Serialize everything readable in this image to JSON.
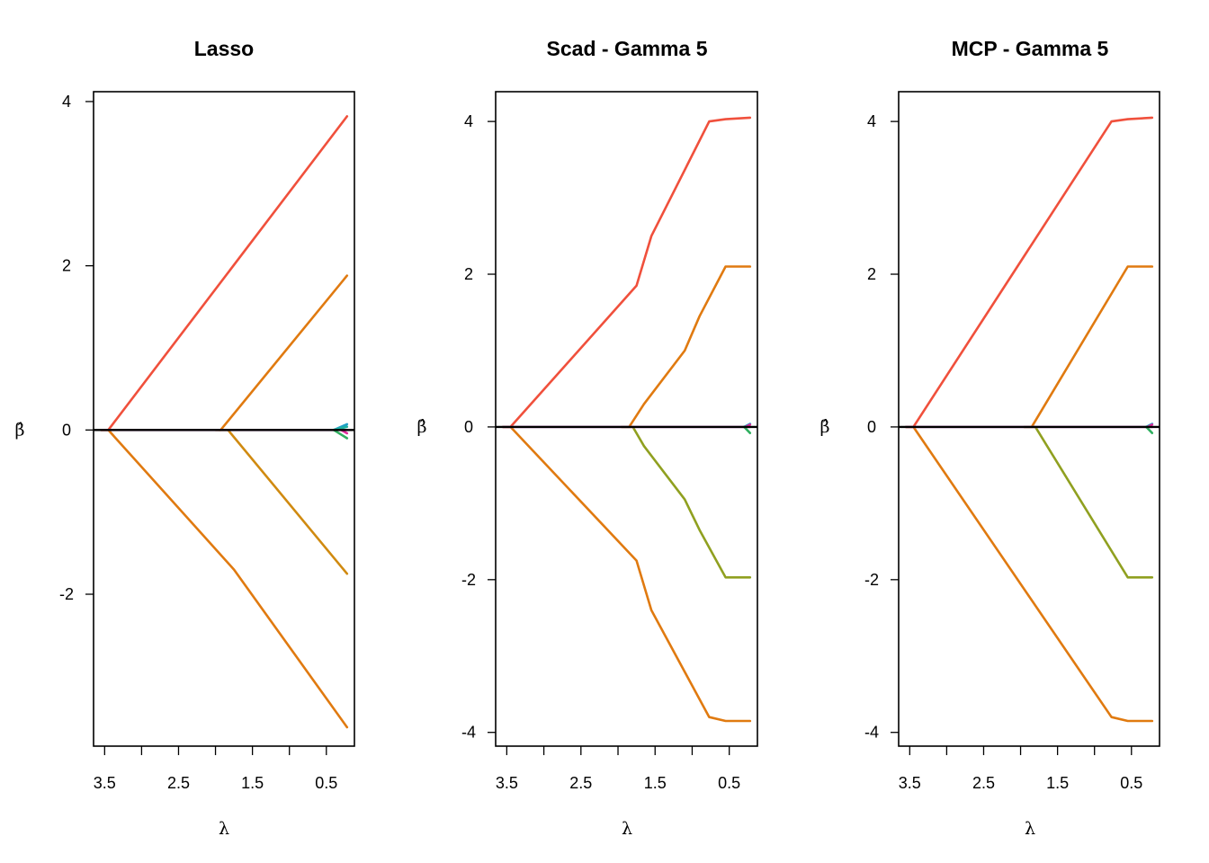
{
  "panels": [
    {
      "title": "Lasso",
      "xlabel": "λ",
      "ylabel": "β̂",
      "ylim": [
        -3.85,
        4.12
      ],
      "yticks": [
        -2,
        0,
        2,
        4
      ],
      "ytick_labels": [
        "-2",
        "0",
        "2",
        "4"
      ],
      "chart_data": {
        "type": "line",
        "title": "Lasso",
        "xlabel": "λ",
        "ylabel": "β̂",
        "xlim": [
          3.65,
          0.12
        ],
        "ylim": [
          -3.85,
          4.12
        ],
        "x_reversed": true,
        "xticks": [
          3.5,
          3.0,
          2.5,
          2.0,
          1.5,
          1.0,
          0.5
        ],
        "xtick_labels": [
          "3.5",
          "2.5",
          "1.5",
          "0.5"
        ],
        "zero_line": true,
        "series": [
          {
            "color": "#F0503C",
            "points": [
              [
                3.55,
                0
              ],
              [
                3.45,
                0
              ],
              [
                0.22,
                3.82
              ]
            ]
          },
          {
            "color": "#E07A10",
            "points": [
              [
                3.55,
                0
              ],
              [
                3.45,
                0
              ],
              [
                1.75,
                -1.7
              ],
              [
                0.22,
                -3.62
              ]
            ]
          },
          {
            "color": "#E07A10",
            "points": [
              [
                2.0,
                0
              ],
              [
                1.93,
                0
              ],
              [
                0.22,
                1.88
              ]
            ]
          },
          {
            "color": "#D08A10",
            "points": [
              [
                1.95,
                0
              ],
              [
                1.83,
                0
              ],
              [
                0.22,
                -1.75
              ]
            ]
          },
          {
            "color": "#D070D0",
            "points": [
              [
                3.55,
                0
              ],
              [
                0.22,
                0
              ]
            ]
          },
          {
            "color": "#1FA0C8",
            "points": [
              [
                0.4,
                0
              ],
              [
                0.22,
                0.07
              ]
            ]
          },
          {
            "color": "#30B060",
            "points": [
              [
                0.4,
                0
              ],
              [
                0.22,
                -0.1
              ]
            ]
          },
          {
            "color": "#20B0A0",
            "points": [
              [
                0.4,
                0
              ],
              [
                0.22,
                0.04
              ]
            ]
          },
          {
            "color": "#E02A9A",
            "points": [
              [
                0.3,
                0
              ],
              [
                0.22,
                -0.04
              ]
            ]
          }
        ]
      }
    },
    {
      "title": "Scad - Gamma 5",
      "xlabel": "λ",
      "ylabel": "β̂",
      "ylim": [
        -4.18,
        4.39
      ],
      "yticks": [
        -4,
        -2,
        0,
        2,
        4
      ],
      "ytick_labels": [
        "-4",
        "-2",
        "0",
        "2",
        "4"
      ],
      "chart_data": {
        "type": "line",
        "title": "Scad - Gamma 5",
        "xlabel": "λ",
        "ylabel": "β̂",
        "xlim": [
          3.65,
          0.12
        ],
        "ylim": [
          -4.18,
          4.39
        ],
        "x_reversed": true,
        "xticks": [
          3.5,
          3.0,
          2.5,
          2.0,
          1.5,
          1.0,
          0.5
        ],
        "xtick_labels": [
          "3.5",
          "2.5",
          "1.5",
          "0.5"
        ],
        "zero_line": true,
        "series": [
          {
            "color": "#F0503C",
            "points": [
              [
                3.55,
                0
              ],
              [
                3.45,
                0
              ],
              [
                1.75,
                1.85
              ],
              [
                1.55,
                2.5
              ],
              [
                0.77,
                4.0
              ],
              [
                0.55,
                4.03
              ],
              [
                0.22,
                4.05
              ]
            ]
          },
          {
            "color": "#E07A10",
            "points": [
              [
                3.55,
                0
              ],
              [
                3.45,
                0
              ],
              [
                1.75,
                -1.75
              ],
              [
                1.55,
                -2.4
              ],
              [
                0.77,
                -3.8
              ],
              [
                0.55,
                -3.85
              ],
              [
                0.22,
                -3.85
              ]
            ]
          },
          {
            "color": "#E07A10",
            "points": [
              [
                1.95,
                0
              ],
              [
                1.85,
                0
              ],
              [
                1.65,
                0.3
              ],
              [
                1.1,
                1.0
              ],
              [
                0.9,
                1.45
              ],
              [
                0.55,
                2.1
              ],
              [
                0.22,
                2.1
              ]
            ]
          },
          {
            "color": "#90A020",
            "points": [
              [
                1.95,
                0
              ],
              [
                1.8,
                0
              ],
              [
                1.65,
                -0.25
              ],
              [
                1.1,
                -0.95
              ],
              [
                0.9,
                -1.35
              ],
              [
                0.55,
                -1.97
              ],
              [
                0.22,
                -1.97
              ]
            ]
          },
          {
            "color": "#D070D0",
            "points": [
              [
                3.55,
                0
              ],
              [
                0.22,
                0
              ]
            ]
          },
          {
            "color": "#1FA0C8",
            "points": [
              [
                0.3,
                0
              ],
              [
                0.22,
                0.04
              ]
            ]
          },
          {
            "color": "#30B060",
            "points": [
              [
                0.3,
                0
              ],
              [
                0.22,
                -0.08
              ]
            ]
          },
          {
            "color": "#E02A9A",
            "points": [
              [
                0.28,
                0
              ],
              [
                0.22,
                0.03
              ]
            ]
          }
        ]
      }
    },
    {
      "title": "MCP - Gamma 5",
      "xlabel": "λ",
      "ylabel": "β̂",
      "ylim": [
        -4.18,
        4.39
      ],
      "yticks": [
        -4,
        -2,
        0,
        2,
        4
      ],
      "ytick_labels": [
        "-4",
        "-2",
        "0",
        "2",
        "4"
      ],
      "chart_data": {
        "type": "line",
        "title": "MCP - Gamma 5",
        "xlabel": "λ",
        "ylabel": "β̂",
        "xlim": [
          3.65,
          0.12
        ],
        "ylim": [
          -4.18,
          4.39
        ],
        "x_reversed": true,
        "xticks": [
          3.5,
          3.0,
          2.5,
          2.0,
          1.5,
          1.0,
          0.5
        ],
        "xtick_labels": [
          "3.5",
          "2.5",
          "1.5",
          "0.5"
        ],
        "zero_line": true,
        "series": [
          {
            "color": "#F0503C",
            "points": [
              [
                3.55,
                0
              ],
              [
                3.45,
                0
              ],
              [
                0.77,
                4.0
              ],
              [
                0.55,
                4.03
              ],
              [
                0.22,
                4.05
              ]
            ]
          },
          {
            "color": "#E07A10",
            "points": [
              [
                3.55,
                0
              ],
              [
                3.45,
                0
              ],
              [
                0.77,
                -3.8
              ],
              [
                0.55,
                -3.85
              ],
              [
                0.22,
                -3.85
              ]
            ]
          },
          {
            "color": "#E07A10",
            "points": [
              [
                1.95,
                0
              ],
              [
                1.85,
                0
              ],
              [
                0.55,
                2.1
              ],
              [
                0.22,
                2.1
              ]
            ]
          },
          {
            "color": "#90A020",
            "points": [
              [
                1.95,
                0
              ],
              [
                1.8,
                0
              ],
              [
                0.55,
                -1.97
              ],
              [
                0.22,
                -1.97
              ]
            ]
          },
          {
            "color": "#D070D0",
            "points": [
              [
                3.55,
                0
              ],
              [
                0.22,
                0
              ]
            ]
          },
          {
            "color": "#1FA0C8",
            "points": [
              [
                0.3,
                0
              ],
              [
                0.22,
                0.04
              ]
            ]
          },
          {
            "color": "#30B060",
            "points": [
              [
                0.3,
                0
              ],
              [
                0.22,
                -0.08
              ]
            ]
          },
          {
            "color": "#E02A9A",
            "points": [
              [
                0.28,
                0
              ],
              [
                0.22,
                0.03
              ]
            ]
          }
        ]
      }
    }
  ]
}
